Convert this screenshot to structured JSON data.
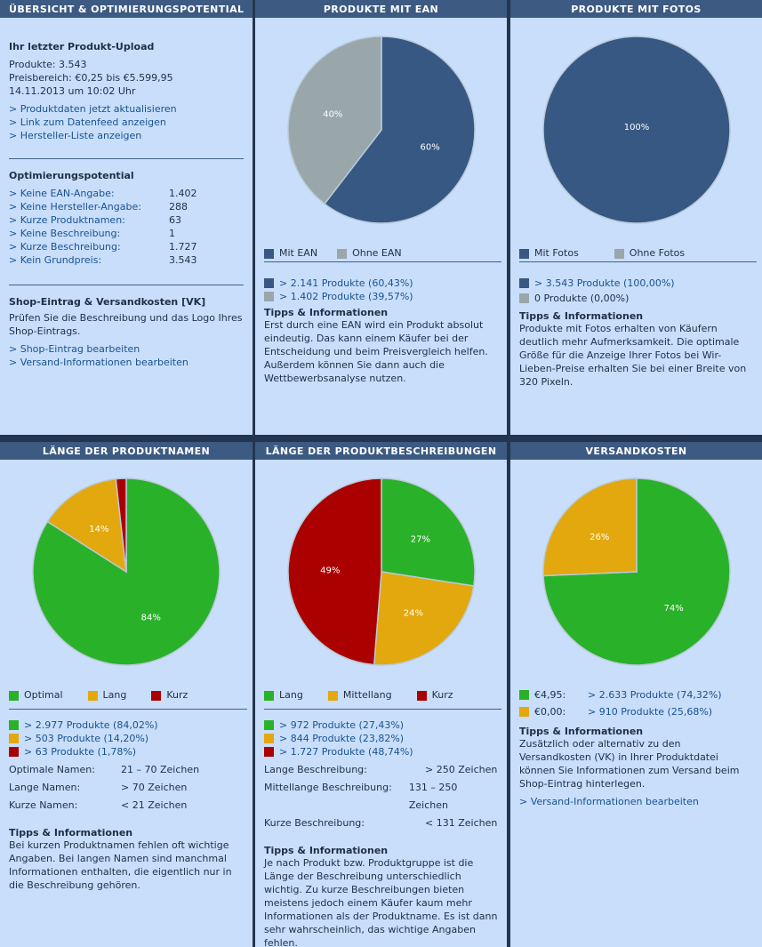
{
  "colors": {
    "dark_blue": "#365883",
    "gray": "#99a7ab",
    "green": "#2ab12a",
    "orange": "#e2a80e",
    "red": "#ab0000"
  },
  "p1": {
    "header": "ÜBERSICHT & OPTIMIERUNGSPOTENTIAL",
    "upload_title": "Ihr letzter Produkt-Upload",
    "upload_lines": [
      "Produkte: 3.543",
      "Preisbereich: €0,25 bis €5.599,95",
      "14.11.2013 um 10:02 Uhr"
    ],
    "upload_links": [
      "> Produktdaten jetzt aktualisieren",
      "> Link zum Datenfeed anzeigen",
      "> Hersteller-Liste anzeigen"
    ],
    "opt_title": "Optimierungspotential",
    "opt_rows": [
      {
        "label": "> Keine EAN-Angabe:",
        "value": "1.402"
      },
      {
        "label": "> Keine Hersteller-Angabe:",
        "value": "288"
      },
      {
        "label": "> Kurze Produktnamen:",
        "value": "63"
      },
      {
        "label": "> Keine Beschreibung:",
        "value": "1"
      },
      {
        "label": "> Kurze Beschreibung:",
        "value": "1.727"
      },
      {
        "label": "> Kein Grundpreis:",
        "value": "3.543"
      }
    ],
    "shop_title": "Shop-Eintrag & Versandkosten [VK]",
    "shop_text": "Prüfen Sie die Beschreibung und das Logo Ihres Shop-Eintrags.",
    "shop_links": [
      "> Shop-Eintrag bearbeiten",
      "> Versand-Informationen bearbeiten"
    ]
  },
  "p2": {
    "header": "PRODUKTE MIT EAN",
    "chart_data": {
      "type": "pie",
      "slices": [
        {
          "label": "Mit EAN",
          "value": 60.43,
          "text": "60%",
          "color": "#365883"
        },
        {
          "label": "Ohne EAN",
          "value": 39.57,
          "text": "40%",
          "color": "#99a7ab"
        }
      ]
    },
    "legend": [
      "Mit EAN",
      "Ohne EAN"
    ],
    "stats": [
      "> 2.141 Produkte (60,43%)",
      "> 1.402 Produkte (39,57%)"
    ],
    "tips_title": "Tipps & Informationen",
    "tips_text": "Erst durch eine EAN wird ein Produkt absolut eindeutig. Das kann einem Käufer bei der Entscheidung und beim Preisvergleich helfen. Außerdem können Sie dann auch die Wettbewerbsanalyse nutzen."
  },
  "p3": {
    "header": "PRODUKTE MIT FOTOS",
    "chart_data": {
      "type": "pie",
      "slices": [
        {
          "label": "Mit Fotos",
          "value": 100,
          "text": "100%",
          "color": "#365883"
        },
        {
          "label": "Ohne Fotos",
          "value": 0,
          "text": "",
          "color": "#99a7ab"
        }
      ]
    },
    "legend": [
      "Mit Fotos",
      "Ohne Fotos"
    ],
    "stats": [
      "> 3.543 Produkte (100,00%)",
      "0 Produkte (0,00%)"
    ],
    "tips_title": "Tipps & Informationen",
    "tips_text": "Produkte mit Fotos erhalten von Käufern deutlich mehr Aufmerksamkeit. Die optimale Größe für die Anzeige Ihrer Fotos bei Wir-Lieben-Preise erhalten Sie bei einer Breite von 320 Pixeln."
  },
  "p4": {
    "header": "LÄNGE DER PRODUKTNAMEN",
    "chart_data": {
      "type": "pie",
      "slices": [
        {
          "label": "Optimal",
          "value": 84.02,
          "text": "84%",
          "color": "#2ab12a"
        },
        {
          "label": "Lang",
          "value": 14.2,
          "text": "14%",
          "color": "#e2a80e"
        },
        {
          "label": "Kurz",
          "value": 1.78,
          "text": "",
          "color": "#ab0000"
        }
      ]
    },
    "legend": [
      "Optimal",
      "Lang",
      "Kurz"
    ],
    "stats": [
      "> 2.977 Produkte (84,02%)",
      "> 503 Produkte (14,20%)",
      "> 63 Produkte (1,78%)"
    ],
    "ranges": [
      {
        "label": "Optimale Namen:",
        "value": "21 – 70 Zeichen"
      },
      {
        "label": "Lange Namen:",
        "value": "> 70 Zeichen"
      },
      {
        "label": "Kurze Namen:",
        "value": "< 21 Zeichen"
      }
    ],
    "tips_title": "Tipps & Informationen",
    "tips_text": "Bei kurzen Produktnamen fehlen oft wichtige Angaben. Bei langen Namen sind manchmal Informationen enthalten, die eigentlich nur in die Beschreibung gehören."
  },
  "p5": {
    "header": "LÄNGE DER PRODUKTBESCHREIBUNGEN",
    "chart_data": {
      "type": "pie",
      "slices": [
        {
          "label": "Lang",
          "value": 27.43,
          "text": "27%",
          "color": "#2ab12a"
        },
        {
          "label": "Mittellang",
          "value": 23.82,
          "text": "24%",
          "color": "#e2a80e"
        },
        {
          "label": "Kurz",
          "value": 48.74,
          "text": "49%",
          "color": "#ab0000"
        }
      ]
    },
    "legend": [
      "Lang",
      "Mittellang",
      "Kurz"
    ],
    "stats": [
      "> 972 Produkte (27,43%)",
      "> 844 Produkte (23,82%)",
      "> 1.727 Produkte (48,74%)"
    ],
    "ranges": [
      {
        "label": "Lange Beschreibung:",
        "value": "> 250 Zeichen"
      },
      {
        "label": "Mittellange Beschreibung:",
        "value": "131 – 250 Zeichen"
      },
      {
        "label": "Kurze Beschreibung:",
        "value": "< 131 Zeichen"
      }
    ],
    "tips_title": "Tipps & Informationen",
    "tips_text": "Je nach Produkt bzw. Produktgruppe ist die Länge der Beschreibung unterschiedlich wichtig. Zu kurze Beschreibungen bieten meistens jedoch einem Käufer kaum mehr Informationen als der Produktname. Es ist dann sehr wahrscheinlich, das wichtige Angaben fehlen."
  },
  "p6": {
    "header": "VERSANDKOSTEN",
    "chart_data": {
      "type": "pie",
      "slices": [
        {
          "label": "€4,95",
          "value": 74.32,
          "text": "74%",
          "color": "#2ab12a"
        },
        {
          "label": "€0,00",
          "value": 25.68,
          "text": "26%",
          "color": "#e2a80e"
        }
      ]
    },
    "legend_rows": [
      {
        "label": "€4,95:",
        "value": "> 2.633 Produkte (74,32%)"
      },
      {
        "label": "€0,00:",
        "value": "> 910 Produkte (25,68%)"
      }
    ],
    "tips_title": "Tipps & Informationen",
    "tips_text": "Zusätzlich oder alternativ zu den Versandkosten (VK) in Ihrer Produktdatei können Sie Informationen zum Versand beim Shop-Eintrag hinterlegen.",
    "link": "> Versand-Informationen bearbeiten"
  }
}
